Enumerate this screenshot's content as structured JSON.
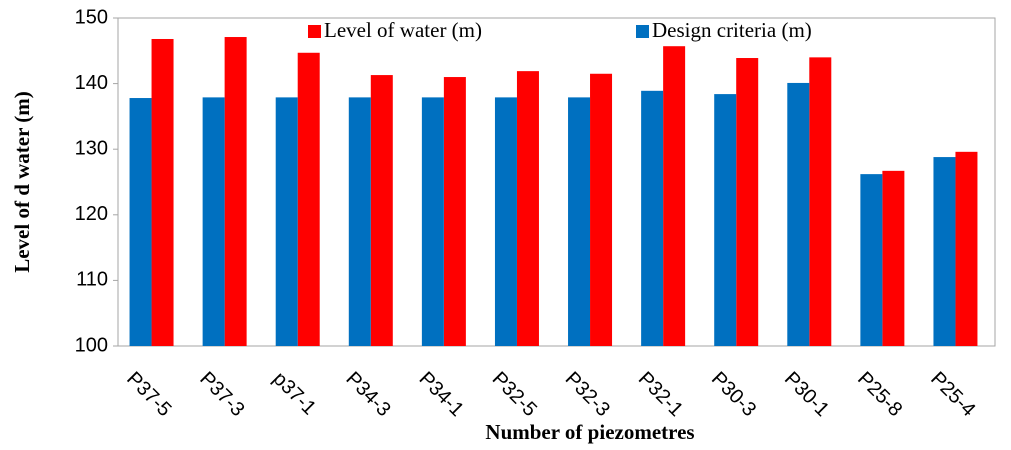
{
  "chart_data": {
    "type": "bar",
    "categories": [
      "P37-5",
      "P37-3",
      "p37-1",
      "P34-3",
      "P34-1",
      "P32-5",
      "P32-3",
      "P32-1",
      "P30-3",
      "P30-1",
      "P25-8",
      "P25-4"
    ],
    "series": [
      {
        "name": "Level of water (m)",
        "color": "#ff0000",
        "values": [
          146.8,
          147.1,
          144.7,
          141.3,
          141,
          141.9,
          141.5,
          145.7,
          143.9,
          144,
          126.7,
          129.6
        ]
      },
      {
        "name": "Design criteria (m)",
        "color": "#0070c0",
        "values": [
          137.8,
          137.9,
          137.9,
          137.9,
          137.9,
          137.9,
          137.9,
          138.9,
          138.4,
          140.1,
          126.2,
          128.8
        ]
      }
    ],
    "x_label": "Number of piezometres",
    "y_label": "Level of d water (m)",
    "ylim": [
      100,
      150
    ],
    "yticks": [
      100,
      110,
      120,
      130,
      140,
      150
    ],
    "grid": false,
    "legend": "top"
  }
}
